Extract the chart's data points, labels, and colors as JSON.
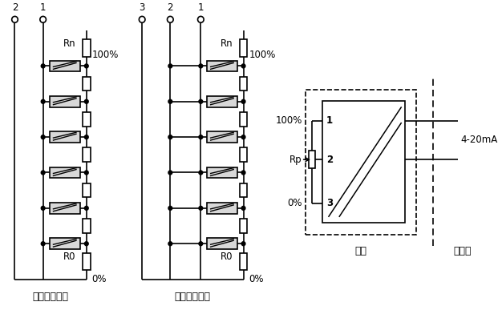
{
  "bg_color": "#ffffff",
  "line_color": "#000000",
  "label1": "二线制变送器",
  "label2": "三线制变送器",
  "label3": "现场",
  "label4": "控制室",
  "signal_label": "4-20mA",
  "pct100": "100%",
  "pct0": "0%",
  "rn_label": "Rn",
  "r0_label": "R0",
  "rp_label": "Rp",
  "font_size_label": 9,
  "font_size_small": 8.5,
  "font_size_tiny": 7.5
}
